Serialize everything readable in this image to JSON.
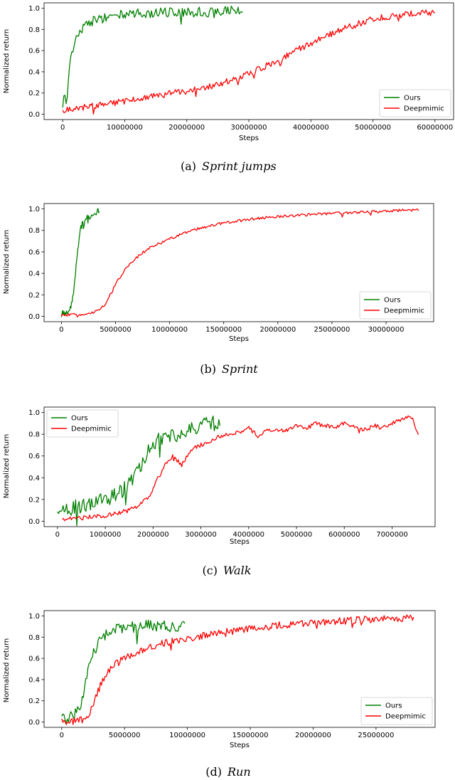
{
  "colors": {
    "ours": "#008000",
    "deepmimic": "#ff0000",
    "axes": "#000000",
    "legend_border": "#cccccc"
  },
  "chart_data": [
    {
      "type": "line",
      "caption": {
        "label": "(a)",
        "title": "Sprint jumps"
      },
      "xlabel": "Steps",
      "ylabel": "Normalized return",
      "xlim": [
        -3000000,
        63000000
      ],
      "ylim": [
        -0.05,
        1.05
      ],
      "xticks": [
        0,
        10000000,
        20000000,
        30000000,
        40000000,
        50000000,
        60000000
      ],
      "xtick_labels": [
        "0",
        "10000000",
        "20000000",
        "30000000",
        "40000000",
        "50000000",
        "60000000"
      ],
      "yticks": [
        0.0,
        0.2,
        0.4,
        0.6,
        0.8,
        1.0
      ],
      "ytick_labels": [
        "0.0",
        "0.2",
        "0.4",
        "0.6",
        "0.8",
        "1.0"
      ],
      "legend_loc": "lower-right",
      "series": [
        {
          "name": "Ours",
          "color": "#008000",
          "x": [
            0,
            300000,
            600000,
            1000000,
            1500000,
            2000000,
            2500000,
            3000000,
            4000000,
            5000000,
            6000000,
            7000000,
            8000000,
            10000000,
            12000000,
            14000000,
            16000000,
            18000000,
            20000000,
            22000000,
            24000000,
            26000000,
            28000000,
            29000000
          ],
          "y": [
            0.05,
            0.2,
            0.1,
            0.4,
            0.6,
            0.7,
            0.75,
            0.8,
            0.85,
            0.88,
            0.9,
            0.91,
            0.93,
            0.94,
            0.95,
            0.95,
            0.96,
            0.96,
            0.97,
            0.97,
            0.96,
            0.97,
            0.98,
            0.98
          ],
          "noise": 0.045
        },
        {
          "name": "Deepmimic",
          "color": "#ff0000",
          "x": [
            0,
            1000000,
            5000000,
            10000000,
            15000000,
            20000000,
            25000000,
            30000000,
            35000000,
            40000000,
            45000000,
            50000000,
            55000000,
            60000000
          ],
          "y": [
            0.03,
            0.05,
            0.08,
            0.12,
            0.17,
            0.22,
            0.28,
            0.38,
            0.52,
            0.67,
            0.8,
            0.9,
            0.94,
            0.96
          ],
          "noise": 0.03
        }
      ]
    },
    {
      "type": "line",
      "caption": {
        "label": "(b)",
        "title": "Sprint"
      },
      "xlabel": "Steps",
      "ylabel": "Normalized return",
      "xlim": [
        -1600000,
        34400000
      ],
      "ylim": [
        -0.05,
        1.05
      ],
      "xticks": [
        0,
        5000000,
        10000000,
        15000000,
        20000000,
        25000000,
        30000000
      ],
      "xtick_labels": [
        "0",
        "5000000",
        "10000000",
        "15000000",
        "20000000",
        "25000000",
        "30000000"
      ],
      "yticks": [
        0.0,
        0.2,
        0.4,
        0.6,
        0.8,
        1.0
      ],
      "ytick_labels": [
        "0.0",
        "0.2",
        "0.4",
        "0.6",
        "0.8",
        "1.0"
      ],
      "legend_loc": "lower-right",
      "series": [
        {
          "name": "Ours",
          "color": "#008000",
          "x": [
            0,
            200000,
            500000,
            800000,
            1000000,
            1200000,
            1400000,
            1600000,
            1800000,
            2000000,
            2400000,
            2800000,
            3200000,
            3500000
          ],
          "y": [
            0.02,
            0.03,
            0.04,
            0.08,
            0.15,
            0.3,
            0.5,
            0.7,
            0.82,
            0.88,
            0.92,
            0.95,
            0.97,
            0.98
          ],
          "noise": 0.03
        },
        {
          "name": "Deepmimic",
          "color": "#ff0000",
          "x": [
            0,
            1000000,
            2000000,
            3000000,
            4000000,
            5000000,
            6000000,
            7000000,
            8000000,
            10000000,
            12000000,
            15000000,
            18000000,
            20000000,
            22000000,
            25000000,
            28000000,
            30000000,
            32000000,
            33000000
          ],
          "y": [
            0.01,
            0.015,
            0.02,
            0.04,
            0.1,
            0.3,
            0.45,
            0.55,
            0.63,
            0.72,
            0.8,
            0.87,
            0.91,
            0.93,
            0.94,
            0.96,
            0.97,
            0.98,
            0.99,
            0.99
          ],
          "noise": 0.012
        }
      ]
    },
    {
      "type": "line",
      "caption": {
        "label": "(c)",
        "title": "Walk"
      },
      "xlabel": "Steps",
      "ylabel": "Normalized return",
      "xlim": [
        -280000,
        7900000
      ],
      "ylim": [
        -0.05,
        1.05
      ],
      "xticks": [
        0,
        1000000,
        2000000,
        3000000,
        4000000,
        5000000,
        6000000,
        7000000
      ],
      "xtick_labels": [
        "0",
        "1000000",
        "2000000",
        "3000000",
        "4000000",
        "5000000",
        "6000000",
        "7000000"
      ],
      "yticks": [
        0.0,
        0.2,
        0.4,
        0.6,
        0.8,
        1.0
      ],
      "ytick_labels": [
        "0.0",
        "0.2",
        "0.4",
        "0.6",
        "0.8",
        "1.0"
      ],
      "legend_loc": "upper-left",
      "series": [
        {
          "name": "Ours",
          "color": "#008000",
          "x": [
            0,
            200000,
            400000,
            600000,
            800000,
            1000000,
            1200000,
            1400000,
            1600000,
            1800000,
            2000000,
            2200000,
            2400000,
            2600000,
            2800000,
            3000000,
            3200000,
            3400000
          ],
          "y": [
            0.1,
            0.11,
            0.13,
            0.15,
            0.17,
            0.2,
            0.24,
            0.3,
            0.38,
            0.55,
            0.72,
            0.76,
            0.78,
            0.82,
            0.86,
            0.88,
            0.9,
            0.9
          ],
          "noise": 0.07
        },
        {
          "name": "Deepmimic",
          "color": "#ff0000",
          "x": [
            100000,
            500000,
            1000000,
            1500000,
            1700000,
            1900000,
            2000000,
            2200000,
            2400000,
            2600000,
            2800000,
            3000000,
            3200000,
            3500000,
            3800000,
            4000000,
            4200000,
            4400000,
            4600000,
            4800000,
            5000000,
            5200000,
            5400000,
            5600000,
            5800000,
            6000000,
            6200000,
            6400000,
            6600000,
            6800000,
            7000000,
            7200000,
            7400000,
            7550000
          ],
          "y": [
            0.02,
            0.03,
            0.05,
            0.1,
            0.14,
            0.22,
            0.3,
            0.48,
            0.6,
            0.52,
            0.66,
            0.7,
            0.74,
            0.8,
            0.82,
            0.86,
            0.78,
            0.85,
            0.83,
            0.84,
            0.88,
            0.86,
            0.9,
            0.88,
            0.86,
            0.9,
            0.87,
            0.84,
            0.88,
            0.86,
            0.9,
            0.94,
            0.97,
            0.78
          ],
          "noise": 0.02
        }
      ]
    },
    {
      "type": "line",
      "caption": {
        "label": "(d)",
        "title": "Run"
      },
      "xlabel": "Steps",
      "ylabel": "Normalized return",
      "xlim": [
        -1400000,
        29700000
      ],
      "ylim": [
        -0.05,
        1.05
      ],
      "xticks": [
        0,
        5000000,
        10000000,
        15000000,
        20000000,
        25000000
      ],
      "xtick_labels": [
        "0",
        "5000000",
        "10000000",
        "15000000",
        "20000000",
        "25000000"
      ],
      "yticks": [
        0.0,
        0.2,
        0.4,
        0.6,
        0.8,
        1.0
      ],
      "ytick_labels": [
        "0.0",
        "0.2",
        "0.4",
        "0.6",
        "0.8",
        "1.0"
      ],
      "legend_loc": "lower-right",
      "series": [
        {
          "name": "Ours",
          "color": "#008000",
          "x": [
            0,
            500000,
            1000000,
            1500000,
            2000000,
            2500000,
            3000000,
            3500000,
            4000000,
            5000000,
            6000000,
            7000000,
            8000000,
            9000000,
            9800000
          ],
          "y": [
            0.02,
            0.03,
            0.06,
            0.15,
            0.45,
            0.65,
            0.75,
            0.82,
            0.86,
            0.88,
            0.9,
            0.91,
            0.9,
            0.9,
            0.9
          ],
          "noise": 0.055
        },
        {
          "name": "Deepmimic",
          "color": "#ff0000",
          "x": [
            0,
            1000000,
            1500000,
            2000000,
            2500000,
            3000000,
            3500000,
            4000000,
            5000000,
            6000000,
            7000000,
            8000000,
            10000000,
            12000000,
            15000000,
            18000000,
            20000000,
            22000000,
            25000000,
            28000000
          ],
          "y": [
            0.01,
            0.01,
            0.02,
            0.05,
            0.15,
            0.32,
            0.45,
            0.52,
            0.6,
            0.66,
            0.7,
            0.74,
            0.79,
            0.83,
            0.88,
            0.92,
            0.94,
            0.95,
            0.97,
            0.98
          ],
          "noise": 0.035
        }
      ]
    }
  ]
}
